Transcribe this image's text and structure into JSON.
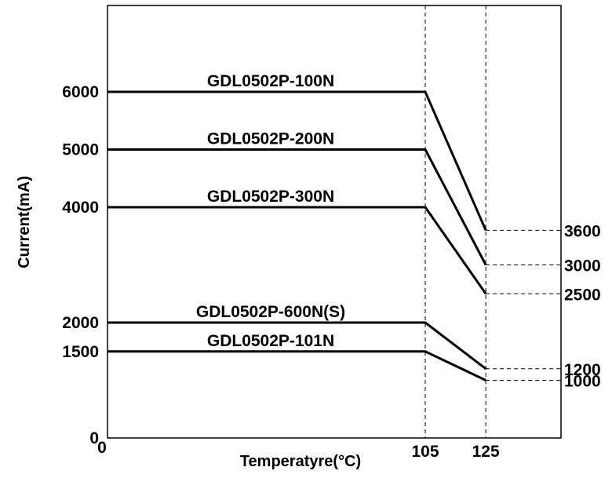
{
  "chart_data": {
    "type": "line",
    "title": "",
    "xlabel": "Temperatyre(°C)",
    "ylabel": "Current(mA)",
    "xlim": [
      0,
      145
    ],
    "ylim": [
      0,
      7200
    ],
    "grid": false,
    "x_ticks": [
      "0",
      "105",
      "125"
    ],
    "y_ticks_left": [
      "0",
      "1500",
      "2000",
      "4000",
      "5000",
      "6000"
    ],
    "y_ticks_right": [
      "3600",
      "3000",
      "2500",
      "1200",
      "1000"
    ],
    "reference_lines_x": [
      105,
      125
    ],
    "series": [
      {
        "name": "GDL0502P-100N",
        "x": [
          0,
          105,
          125
        ],
        "y": [
          6000,
          6000,
          3600
        ]
      },
      {
        "name": "GDL0502P-200N",
        "x": [
          0,
          105,
          125
        ],
        "y": [
          5000,
          5000,
          3000
        ]
      },
      {
        "name": "GDL0502P-300N",
        "x": [
          0,
          105,
          125
        ],
        "y": [
          4000,
          4000,
          2500
        ]
      },
      {
        "name": "GDL0502P-600N(S)",
        "x": [
          0,
          105,
          125
        ],
        "y": [
          2000,
          2000,
          1200
        ]
      },
      {
        "name": "GDL0502P-101N",
        "x": [
          0,
          105,
          125
        ],
        "y": [
          1500,
          1500,
          1000
        ]
      }
    ],
    "colors": {
      "line": "#000000",
      "frame": "#000000",
      "dashed": "#000000"
    }
  }
}
